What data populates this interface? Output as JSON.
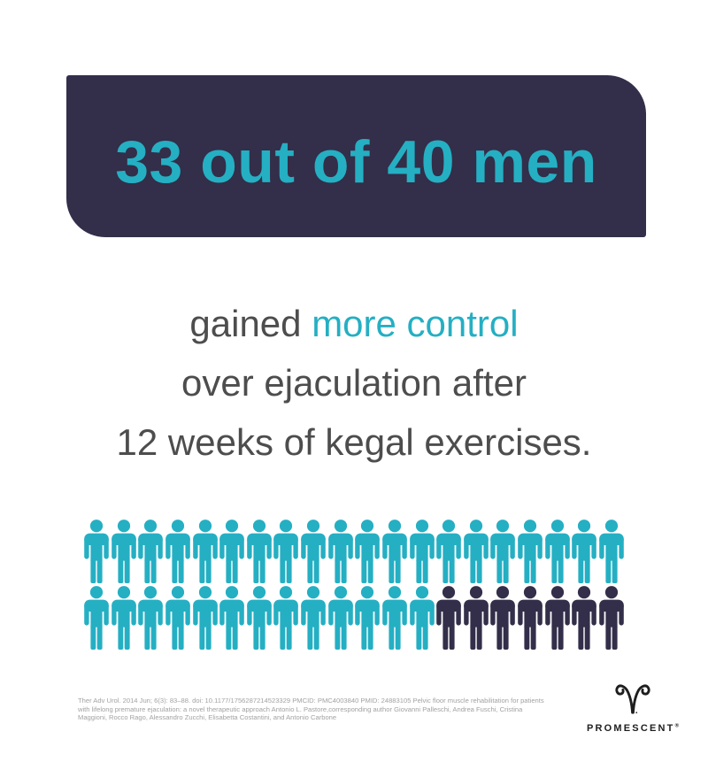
{
  "headline": {
    "text": "33 out of 40 men"
  },
  "body": {
    "line1_prefix": "gained ",
    "line1_highlight": "more control",
    "line2": "over ejaculation after",
    "line3": "12 weeks of kegal exercises."
  },
  "pictogram": {
    "total_icons": 40,
    "highlighted_icons": 33,
    "rows": [
      {
        "groups": [
          {
            "color": "teal",
            "count": 20
          }
        ]
      },
      {
        "groups": [
          {
            "color": "teal",
            "count": 13
          },
          {
            "color": "navy",
            "count": 7
          }
        ]
      }
    ],
    "colors": {
      "teal": "#25AFC3",
      "navy": "#332E49"
    }
  },
  "citation": {
    "text": "Ther Adv Urol. 2014 Jun; 6(3): 83–88. doi: 10.1177/1756287214523329 PMCID: PMC4003840 PMID: 24883105 Pelvic floor muscle rehabilitation for patients with lifelong premature ejaculation: a novel therapeutic approach Antonio L. Pastore,corresponding author Giovanni Palleschi, Andrea Fuschi, Cristina Maggioni, Rocco Rago, Alessandro Zucchi, Elisabetta Costantini, and Antonio Carbone"
  },
  "logo": {
    "wordmark": "PROMESCENT",
    "registered": "®",
    "symbol": "ram-horns"
  },
  "colors": {
    "navy": "#332E49",
    "teal": "#25AFC3",
    "gray": "#4D4D4D",
    "lightgray": "#A2A2A2",
    "logo": "#1E1E1E"
  },
  "chart_data": {
    "type": "pictogram",
    "title": "33 out of 40 men gained more control over ejaculation after 12 weeks of kegal exercises.",
    "categories": [
      "gained more control",
      "did not gain more control"
    ],
    "values": [
      33,
      7
    ],
    "total": 40,
    "layout": {
      "rows": 2,
      "icons_per_row": 20,
      "legend": "none",
      "axes": "none"
    },
    "colors": {
      "highlight": "#25AFC3",
      "muted": "#332E49"
    }
  }
}
